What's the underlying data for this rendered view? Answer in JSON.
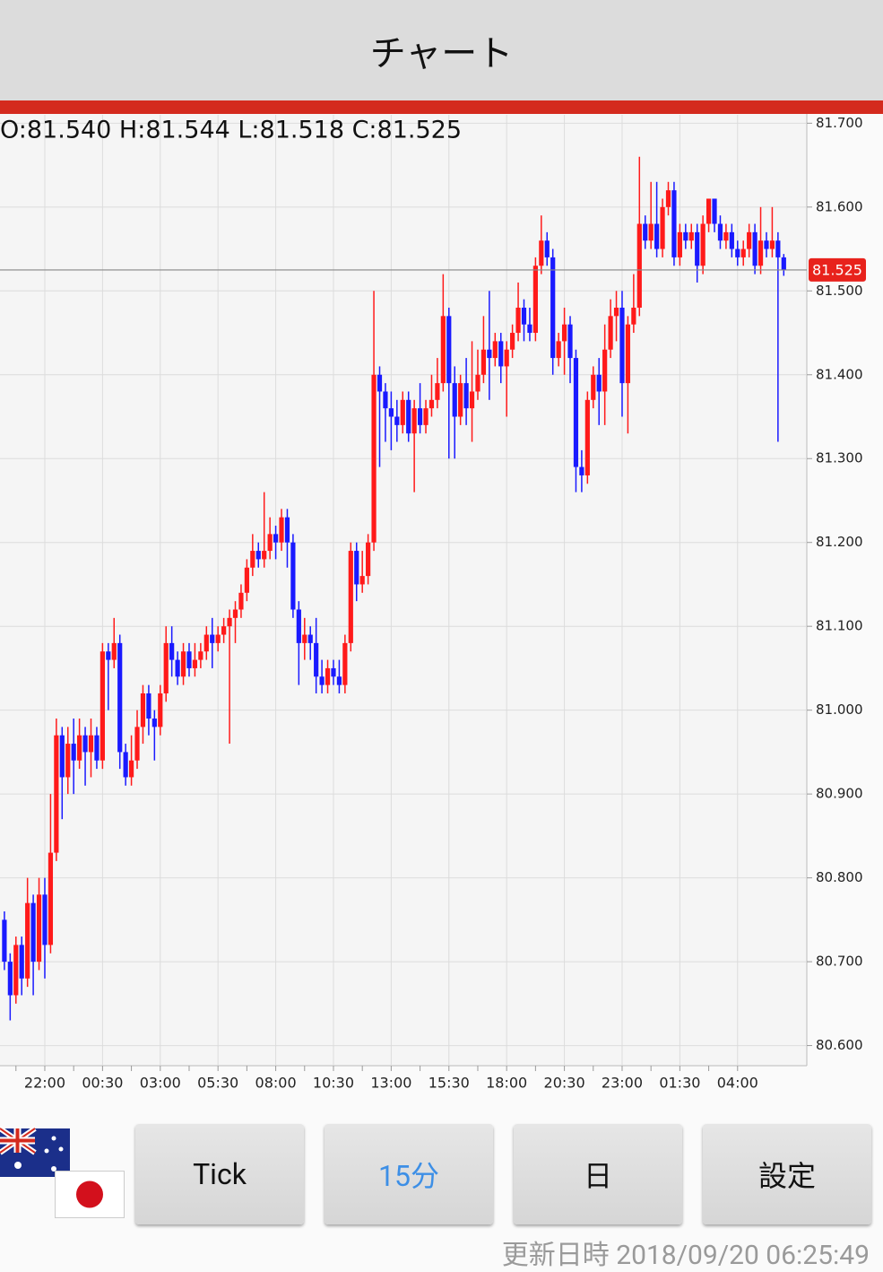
{
  "header": {
    "title": "チャート"
  },
  "chart_data": {
    "type": "candlestick",
    "info_label": "O:81.540 H:81.544 L:81.518 C:81.525",
    "categories": [
      null,
      null,
      null,
      null,
      null,
      null,
      null,
      "22:00",
      null,
      null,
      null,
      null,
      null,
      null,
      null,
      null,
      null,
      "00:30",
      null,
      null,
      null,
      null,
      null,
      null,
      null,
      null,
      null,
      "03:00",
      null,
      null,
      null,
      null,
      null,
      null,
      null,
      null,
      null,
      "05:30",
      null,
      null,
      null,
      null,
      null,
      null,
      null,
      null,
      null,
      "08:00",
      null,
      null,
      null,
      null,
      null,
      null,
      null,
      null,
      null,
      "10:30",
      null,
      null,
      null,
      null,
      null,
      null,
      null,
      null,
      null,
      "13:00",
      null,
      null,
      null,
      null,
      null,
      null,
      null,
      null,
      null,
      "15:30",
      null,
      null,
      null,
      null,
      null,
      null,
      null,
      null,
      null,
      "18:00",
      null,
      null,
      null,
      null,
      null,
      null,
      null,
      null,
      null,
      "20:30",
      null,
      null,
      null,
      null,
      null,
      null,
      null,
      null,
      null,
      "23:00",
      null,
      null,
      null,
      null,
      null,
      null,
      null,
      null,
      null,
      "01:30",
      null,
      null,
      null,
      null,
      null,
      null,
      null,
      null,
      null,
      "04:00",
      null,
      null,
      null,
      null,
      null,
      null,
      null,
      null
    ],
    "open": [
      80.75,
      80.7,
      80.66,
      80.72,
      80.68,
      80.77,
      80.7,
      80.78,
      80.72,
      80.83,
      80.97,
      80.92,
      80.96,
      80.94,
      80.97,
      80.95,
      80.97,
      80.94,
      81.07,
      81.06,
      81.08,
      80.95,
      80.92,
      80.94,
      80.98,
      81.02,
      80.99,
      80.98,
      81.02,
      81.08,
      81.06,
      81.04,
      81.07,
      81.05,
      81.06,
      81.07,
      81.09,
      81.08,
      81.09,
      81.1,
      81.11,
      81.12,
      81.14,
      81.17,
      81.19,
      81.18,
      81.19,
      81.21,
      81.2,
      81.23,
      81.2,
      81.12,
      81.08,
      81.09,
      81.08,
      81.04,
      81.03,
      81.05,
      81.04,
      81.03,
      81.08,
      81.19,
      81.15,
      81.16,
      81.2,
      81.4,
      81.38,
      81.36,
      81.35,
      81.34,
      81.37,
      81.33,
      81.36,
      81.34,
      81.36,
      81.37,
      81.39,
      81.47,
      81.39,
      81.35,
      81.39,
      81.36,
      81.38,
      81.4,
      81.43,
      81.42,
      81.44,
      81.41,
      81.43,
      81.45,
      81.48,
      81.46,
      81.45,
      81.53,
      81.56,
      81.54,
      81.42,
      81.44,
      81.46,
      81.42,
      81.29,
      81.28,
      81.37,
      81.4,
      81.38,
      81.43,
      81.47,
      81.48,
      81.39,
      81.46,
      81.48,
      81.58,
      81.56,
      81.58,
      81.55,
      81.6,
      81.62,
      81.54,
      81.57,
      81.56,
      81.57,
      81.53,
      81.58,
      81.61,
      81.58,
      81.56,
      81.57,
      81.55,
      81.54,
      81.55,
      81.57,
      81.53,
      81.56,
      81.55,
      81.56,
      81.54
    ],
    "high": [
      80.76,
      80.71,
      80.73,
      80.73,
      80.8,
      80.78,
      80.8,
      80.8,
      80.9,
      80.99,
      80.98,
      80.98,
      80.99,
      80.99,
      80.98,
      80.99,
      80.98,
      81.08,
      81.08,
      81.11,
      81.09,
      80.96,
      80.97,
      81.0,
      81.03,
      81.03,
      81.0,
      81.03,
      81.1,
      81.1,
      81.07,
      81.08,
      81.08,
      81.08,
      81.08,
      81.1,
      81.11,
      81.1,
      81.11,
      81.12,
      81.13,
      81.15,
      81.18,
      81.21,
      81.2,
      81.26,
      81.23,
      81.22,
      81.24,
      81.24,
      81.21,
      81.13,
      81.11,
      81.1,
      81.11,
      81.06,
      81.06,
      81.06,
      81.06,
      81.09,
      81.2,
      81.2,
      81.19,
      81.21,
      81.5,
      81.41,
      81.39,
      81.38,
      81.37,
      81.38,
      81.38,
      81.37,
      81.39,
      81.37,
      81.4,
      81.42,
      81.52,
      81.48,
      81.41,
      81.4,
      81.42,
      81.44,
      81.43,
      81.47,
      81.5,
      81.45,
      81.45,
      81.44,
      81.46,
      81.51,
      81.49,
      81.48,
      81.54,
      81.59,
      81.57,
      81.55,
      81.45,
      81.48,
      81.47,
      81.43,
      81.31,
      81.38,
      81.41,
      81.42,
      81.46,
      81.49,
      81.5,
      81.5,
      81.47,
      81.52,
      81.66,
      81.59,
      81.63,
      81.63,
      81.61,
      81.63,
      81.63,
      81.58,
      81.58,
      81.58,
      81.58,
      81.59,
      81.61,
      81.61,
      81.59,
      81.58,
      81.58,
      81.56,
      81.56,
      81.58,
      81.58,
      81.6,
      81.57,
      81.6,
      81.57,
      81.544
    ],
    "low": [
      80.69,
      80.63,
      80.65,
      80.66,
      80.67,
      80.66,
      80.69,
      80.68,
      80.71,
      80.82,
      80.87,
      80.9,
      80.9,
      80.93,
      80.91,
      80.92,
      80.93,
      80.93,
      81.0,
      81.05,
      80.93,
      80.91,
      80.91,
      80.93,
      80.96,
      80.97,
      80.94,
      80.97,
      81.01,
      81.04,
      81.03,
      81.03,
      81.04,
      81.04,
      81.05,
      81.06,
      81.05,
      81.07,
      81.08,
      80.96,
      81.08,
      81.11,
      81.13,
      81.16,
      81.17,
      81.17,
      81.18,
      81.18,
      81.19,
      81.17,
      81.11,
      81.03,
      81.06,
      81.06,
      81.02,
      81.02,
      81.02,
      81.03,
      81.02,
      81.02,
      81.07,
      81.13,
      81.14,
      81.15,
      81.19,
      81.29,
      81.32,
      81.31,
      81.32,
      81.33,
      81.32,
      81.26,
      81.33,
      81.33,
      81.35,
      81.36,
      81.38,
      81.3,
      81.3,
      81.34,
      81.34,
      81.32,
      81.37,
      81.39,
      81.37,
      81.41,
      81.39,
      81.35,
      81.42,
      81.44,
      81.44,
      81.44,
      81.44,
      81.52,
      81.53,
      81.4,
      81.41,
      81.4,
      81.39,
      81.26,
      81.26,
      81.27,
      81.36,
      81.34,
      81.34,
      81.42,
      81.44,
      81.35,
      81.33,
      81.45,
      81.47,
      81.55,
      81.55,
      81.54,
      81.54,
      81.59,
      81.53,
      81.53,
      81.55,
      81.55,
      81.51,
      81.52,
      81.57,
      81.57,
      81.55,
      81.55,
      81.54,
      81.53,
      81.53,
      81.54,
      81.52,
      81.52,
      81.54,
      81.54,
      81.32,
      81.518
    ],
    "close": [
      80.7,
      80.66,
      80.72,
      80.68,
      80.77,
      80.7,
      80.78,
      80.72,
      80.83,
      80.97,
      80.92,
      80.96,
      80.94,
      80.97,
      80.95,
      80.97,
      80.94,
      81.07,
      81.06,
      81.08,
      80.95,
      80.92,
      80.94,
      80.98,
      81.02,
      80.99,
      80.98,
      81.02,
      81.08,
      81.06,
      81.04,
      81.07,
      81.05,
      81.06,
      81.07,
      81.09,
      81.08,
      81.09,
      81.1,
      81.11,
      81.12,
      81.14,
      81.17,
      81.19,
      81.18,
      81.19,
      81.21,
      81.2,
      81.23,
      81.2,
      81.12,
      81.08,
      81.09,
      81.08,
      81.04,
      81.03,
      81.05,
      81.04,
      81.03,
      81.08,
      81.19,
      81.15,
      81.16,
      81.2,
      81.4,
      81.38,
      81.36,
      81.35,
      81.34,
      81.37,
      81.33,
      81.36,
      81.34,
      81.36,
      81.37,
      81.39,
      81.47,
      81.39,
      81.35,
      81.39,
      81.36,
      81.38,
      81.4,
      81.43,
      81.42,
      81.44,
      81.41,
      81.43,
      81.45,
      81.48,
      81.46,
      81.45,
      81.53,
      81.56,
      81.54,
      81.42,
      81.44,
      81.46,
      81.42,
      81.29,
      81.28,
      81.37,
      81.4,
      81.38,
      81.43,
      81.47,
      81.48,
      81.39,
      81.46,
      81.48,
      81.58,
      81.56,
      81.58,
      81.55,
      81.6,
      81.62,
      81.54,
      81.57,
      81.56,
      81.57,
      81.53,
      81.58,
      81.61,
      81.58,
      81.56,
      81.57,
      81.55,
      81.54,
      81.55,
      81.57,
      81.53,
      81.56,
      81.55,
      81.56,
      81.54,
      81.525
    ],
    "up_color": "#ff1a1a",
    "down_color": "#1a1aff",
    "last_price": 81.525,
    "last_price_color": "#e8221c",
    "ylim": [
      80.576,
      81.71
    ],
    "yticks": [
      {
        "value": 80.6,
        "label": "80.600"
      },
      {
        "value": 80.7,
        "label": "80.700"
      },
      {
        "value": 80.8,
        "label": "80.800"
      },
      {
        "value": 80.9,
        "label": "80.900"
      },
      {
        "value": 81.0,
        "label": "81.000"
      },
      {
        "value": 81.1,
        "label": "81.100"
      },
      {
        "value": 81.2,
        "label": "81.200"
      },
      {
        "value": 81.3,
        "label": "81.300"
      },
      {
        "value": 81.4,
        "label": "81.400"
      },
      {
        "value": 81.5,
        "label": "81.500"
      },
      {
        "value": 81.6,
        "label": "81.600"
      },
      {
        "value": 81.7,
        "label": "81.700"
      }
    ],
    "grid": true
  },
  "buttons": [
    "Tick",
    "15分",
    "日",
    "設定"
  ],
  "footer": {
    "updated": "更新日時 2018/09/20 06:25:49"
  }
}
